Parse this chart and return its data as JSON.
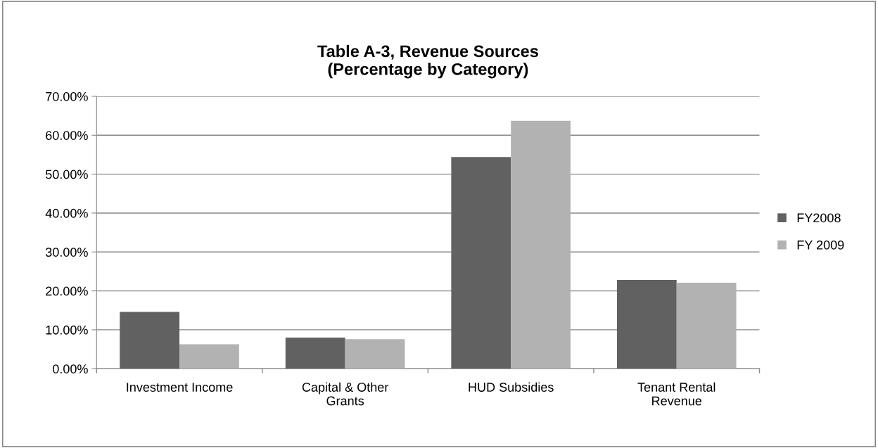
{
  "chart_data": {
    "type": "bar",
    "title": "Table A-3, Revenue Sources\n(Percentage by Category)",
    "categories": [
      "Investment Income",
      "Capital & Other Grants",
      "HUD Subsidies",
      "Tenant Rental Revenue"
    ],
    "series": [
      {
        "name": "FY2008",
        "color": "#616161",
        "values": [
          14.6,
          8.0,
          54.4,
          22.8
        ]
      },
      {
        "name": "FY 2009",
        "color": "#b2b2b2",
        "values": [
          6.3,
          7.6,
          63.7,
          22.1
        ]
      }
    ],
    "ylim": [
      0,
      70
    ],
    "yticks": [
      {
        "value": 0,
        "label": "0.00%"
      },
      {
        "value": 10,
        "label": "10.00%"
      },
      {
        "value": 20,
        "label": "20.00%"
      },
      {
        "value": 30,
        "label": "30.00%"
      },
      {
        "value": 40,
        "label": "40.00%"
      },
      {
        "value": 50,
        "label": "50.00%"
      },
      {
        "value": 60,
        "label": "60.00%"
      },
      {
        "value": 70,
        "label": "70.00%"
      }
    ],
    "grid": "y",
    "legend": "right"
  }
}
